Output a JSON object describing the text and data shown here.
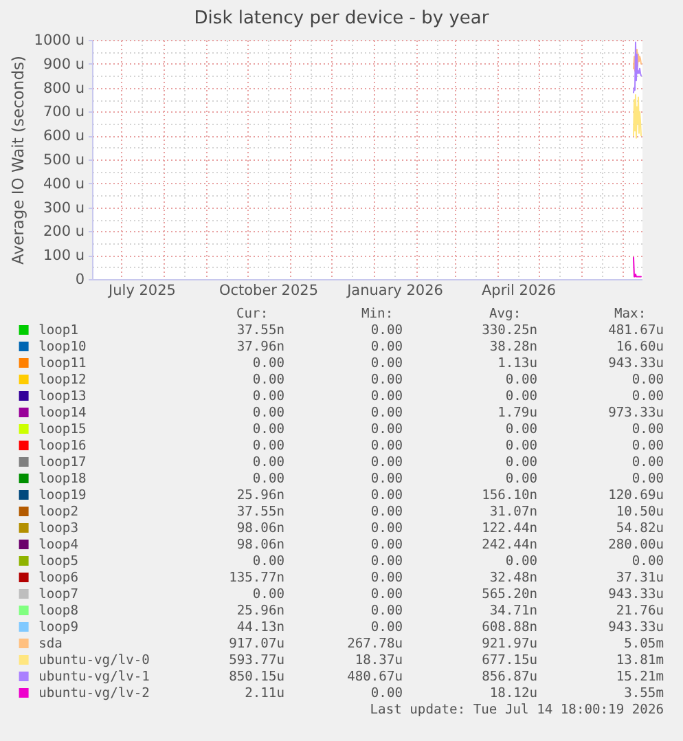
{
  "chart_data": {
    "type": "line",
    "title": "Disk latency per device - by year",
    "ylabel": "Average IO Wait (seconds)",
    "x": [
      "2026-07-09T00:00",
      "2026-07-09T12:00",
      "2026-07-10T00:00",
      "2026-07-10T12:00",
      "2026-07-11T00:00",
      "2026-07-11T12:00",
      "2026-07-12T00:00",
      "2026-07-12T12:00",
      "2026-07-13T00:00",
      "2026-07-13T12:00",
      "2026-07-14T00:00",
      "2026-07-14T12:00"
    ],
    "xlim": [
      "2025-06-10",
      "2026-07-15"
    ],
    "xticks": [
      {
        "value": "2025-07-01",
        "label": null
      },
      {
        "value": "2025-07-16",
        "label": "July 2025"
      },
      {
        "value": "2025-08-01",
        "label": null
      },
      {
        "value": "2025-08-16",
        "label": null
      },
      {
        "value": "2025-09-01",
        "label": null
      },
      {
        "value": "2025-09-16",
        "label": null
      },
      {
        "value": "2025-10-01",
        "label": null
      },
      {
        "value": "2025-10-16",
        "label": "October 2025"
      },
      {
        "value": "2025-11-01",
        "label": null
      },
      {
        "value": "2025-11-16",
        "label": null
      },
      {
        "value": "2025-12-01",
        "label": null
      },
      {
        "value": "2025-12-16",
        "label": null
      },
      {
        "value": "2026-01-01",
        "label": null
      },
      {
        "value": "2026-01-16",
        "label": "January 2026"
      },
      {
        "value": "2026-02-01",
        "label": null
      },
      {
        "value": "2026-02-16",
        "label": null
      },
      {
        "value": "2026-03-01",
        "label": null
      },
      {
        "value": "2026-03-16",
        "label": null
      },
      {
        "value": "2026-04-01",
        "label": null
      },
      {
        "value": "2026-04-16",
        "label": "April 2026"
      },
      {
        "value": "2026-05-01",
        "label": null
      },
      {
        "value": "2026-05-16",
        "label": null
      },
      {
        "value": "2026-06-01",
        "label": null
      },
      {
        "value": "2026-06-16",
        "label": null
      },
      {
        "value": "2026-07-01",
        "label": null
      }
    ],
    "ylim": [
      0,
      1000
    ],
    "yticks": [
      0,
      {
        "value": 50,
        "label": null
      },
      {
        "value": 100,
        "label": "100 u"
      },
      {
        "value": 150,
        "label": null
      },
      {
        "value": 200,
        "label": "200 u"
      },
      {
        "value": 250,
        "label": null
      },
      {
        "value": 300,
        "label": "300 u"
      },
      {
        "value": 350,
        "label": null
      },
      {
        "value": 400,
        "label": "400 u"
      },
      {
        "value": 450,
        "label": null
      },
      {
        "value": 500,
        "label": "500 u"
      },
      {
        "value": 550,
        "label": null
      },
      {
        "value": 600,
        "label": "600 u"
      },
      {
        "value": 650,
        "label": null
      },
      {
        "value": 700,
        "label": "700 u"
      },
      {
        "value": 750,
        "label": null
      },
      {
        "value": 800,
        "label": "800 u"
      },
      {
        "value": 850,
        "label": null
      },
      {
        "value": 900,
        "label": "900 u"
      },
      {
        "value": 950,
        "label": null
      },
      {
        "value": 1000,
        "label": "1000 u"
      }
    ],
    "grid": true,
    "legend": "bottom",
    "series": [
      {
        "name": "loop1",
        "color": "#00cc00",
        "values": [
          null,
          null,
          null,
          null,
          null,
          null,
          null,
          null,
          null,
          null,
          null,
          null
        ]
      },
      {
        "name": "loop10",
        "color": "#0066b3",
        "values": [
          null,
          null,
          null,
          null,
          null,
          null,
          null,
          null,
          null,
          null,
          null,
          null
        ]
      },
      {
        "name": "loop11",
        "color": "#ff8000",
        "values": [
          null,
          null,
          null,
          null,
          null,
          null,
          null,
          null,
          null,
          null,
          null,
          null
        ]
      },
      {
        "name": "loop12",
        "color": "#ffcc00",
        "values": [
          null,
          null,
          null,
          null,
          null,
          null,
          null,
          null,
          null,
          null,
          null,
          null
        ]
      },
      {
        "name": "loop13",
        "color": "#330099",
        "values": [
          null,
          null,
          null,
          null,
          null,
          null,
          null,
          null,
          null,
          null,
          null,
          null
        ]
      },
      {
        "name": "loop14",
        "color": "#990099",
        "values": [
          null,
          null,
          null,
          null,
          null,
          null,
          null,
          null,
          null,
          null,
          null,
          null
        ]
      },
      {
        "name": "loop15",
        "color": "#ccff00",
        "values": [
          null,
          null,
          null,
          null,
          null,
          null,
          null,
          null,
          null,
          null,
          null,
          null
        ]
      },
      {
        "name": "loop16",
        "color": "#ff0000",
        "values": [
          null,
          null,
          null,
          null,
          null,
          null,
          null,
          null,
          null,
          null,
          null,
          null
        ]
      },
      {
        "name": "loop17",
        "color": "#808080",
        "values": [
          null,
          null,
          null,
          null,
          null,
          null,
          null,
          null,
          null,
          null,
          null,
          null
        ]
      },
      {
        "name": "loop18",
        "color": "#008f00",
        "values": [
          null,
          null,
          null,
          null,
          null,
          null,
          null,
          null,
          null,
          null,
          null,
          null
        ]
      },
      {
        "name": "loop19",
        "color": "#00487d",
        "values": [
          null,
          null,
          null,
          null,
          null,
          null,
          null,
          null,
          null,
          null,
          null,
          null
        ]
      },
      {
        "name": "loop2",
        "color": "#b35a00",
        "values": [
          null,
          null,
          null,
          null,
          null,
          null,
          null,
          null,
          null,
          null,
          null,
          null
        ]
      },
      {
        "name": "loop3",
        "color": "#b38f00",
        "values": [
          null,
          null,
          null,
          null,
          null,
          null,
          null,
          null,
          null,
          null,
          null,
          null
        ]
      },
      {
        "name": "loop4",
        "color": "#6b006b",
        "values": [
          null,
          null,
          null,
          null,
          null,
          null,
          null,
          null,
          null,
          null,
          null,
          null
        ]
      },
      {
        "name": "loop5",
        "color": "#8fb300",
        "values": [
          null,
          null,
          null,
          null,
          null,
          null,
          null,
          null,
          null,
          null,
          null,
          null
        ]
      },
      {
        "name": "loop6",
        "color": "#b30000",
        "values": [
          null,
          null,
          null,
          null,
          null,
          null,
          null,
          null,
          null,
          null,
          null,
          null
        ]
      },
      {
        "name": "loop7",
        "color": "#bebebe",
        "values": [
          null,
          null,
          null,
          null,
          null,
          null,
          null,
          null,
          null,
          null,
          null,
          null
        ]
      },
      {
        "name": "loop8",
        "color": "#80ff80",
        "values": [
          null,
          null,
          null,
          null,
          null,
          null,
          null,
          null,
          null,
          null,
          null,
          null
        ]
      },
      {
        "name": "loop9",
        "color": "#80c9ff",
        "values": [
          null,
          null,
          null,
          null,
          null,
          null,
          null,
          null,
          null,
          null,
          null,
          null
        ]
      },
      {
        "name": "sda",
        "color": "#ffc080",
        "values": [
          880,
          930,
          870,
          950,
          900,
          960,
          890,
          940,
          910,
          930,
          920,
          900
        ]
      },
      {
        "name": "ubuntu-vg/lv-0",
        "color": "#ffe680",
        "values": [
          600,
          750,
          620,
          770,
          590,
          720,
          650,
          760,
          610,
          700,
          660,
          600
        ]
      },
      {
        "name": "ubuntu-vg/lv-1",
        "color": "#aa80ff",
        "values": [
          780,
          800,
          790,
          990,
          830,
          940,
          860,
          870,
          860,
          880,
          860,
          850
        ]
      },
      {
        "name": "ubuntu-vg/lv-2",
        "color": "#ee00cc",
        "values": [
          90,
          10,
          10,
          20,
          10,
          10,
          10,
          10,
          10,
          10,
          10,
          10
        ]
      }
    ],
    "annotations": [
      "Cur:",
      "Min:",
      "Avg:",
      "Max:",
      "37.55n",
      "0.00",
      "330.25n",
      "481.67u",
      "37.96n",
      "0.00",
      "38.28n",
      "16.60u",
      "0.00",
      "0.00",
      "1.13u",
      "943.33u",
      "0.00",
      "0.00",
      "0.00",
      "0.00",
      "0.00",
      "0.00",
      "0.00",
      "0.00",
      "0.00",
      "0.00",
      "1.79u",
      "973.33u",
      "0.00",
      "0.00",
      "0.00",
      "0.00",
      "0.00",
      "0.00",
      "0.00",
      "0.00",
      "0.00",
      "0.00",
      "0.00",
      "0.00",
      "0.00",
      "0.00",
      "0.00",
      "0.00",
      "25.96n",
      "0.00",
      "156.10n",
      "120.69u",
      "37.55n",
      "0.00",
      "31.07n",
      "10.50u",
      "98.06n",
      "0.00",
      "122.44n",
      "54.82u",
      "98.06n",
      "0.00",
      "242.44n",
      "280.00u",
      "0.00",
      "0.00",
      "0.00",
      "0.00",
      "135.77n",
      "0.00",
      "32.48n",
      "37.31u",
      "0.00",
      "0.00",
      "565.20n",
      "943.33u",
      "25.96n",
      "0.00",
      "34.71n",
      "21.76u",
      "44.13n",
      "0.00",
      "608.88n",
      "943.33u",
      "917.07u",
      "267.78u",
      "921.97u",
      "5.05m",
      "593.77u",
      "18.37u",
      "677.15u",
      "13.81m",
      "850.15u",
      "480.67u",
      "856.87u",
      "15.21m",
      "2.11u",
      "0.00",
      "18.12u",
      "3.55m",
      "Last update: Tue Jul 14 18:00:19 2026"
    ]
  }
}
